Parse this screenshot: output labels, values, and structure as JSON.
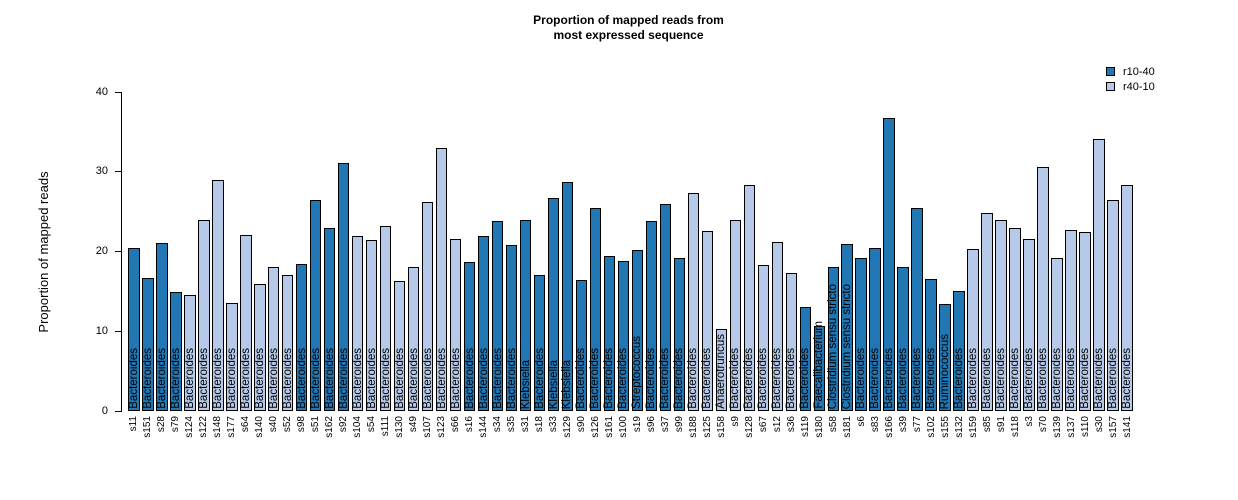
{
  "header": {
    "title_line1": "Proportion of mapped reads from",
    "title_line2": "most expressed sequence"
  },
  "y_axis": {
    "label": "Proportion of mapped reads",
    "ticks": [
      0,
      10,
      20,
      30,
      40
    ]
  },
  "legend": {
    "items": [
      {
        "label": "r10-40",
        "color": "#2176B4"
      },
      {
        "label": "r40-10",
        "color": "#B6C9E8"
      }
    ]
  },
  "chart_data": {
    "type": "bar",
    "title": "Proportion of mapped reads from most expressed sequence",
    "xlabel": "",
    "ylabel": "Proportion of mapped reads",
    "ylim": [
      0,
      40
    ],
    "yticks": [
      0,
      10,
      20,
      30,
      40
    ],
    "grid": false,
    "legend_position": "top-right",
    "series_colors": {
      "r10-40": "#2176B4",
      "r40-10": "#B6C9E8"
    },
    "bars": [
      {
        "sample": "s11",
        "value": 20.5,
        "series": "r10-40",
        "taxon": "Bacteroides"
      },
      {
        "sample": "s151",
        "value": 16.7,
        "series": "r10-40",
        "taxon": "Bacteroides"
      },
      {
        "sample": "s28",
        "value": 21.1,
        "series": "r10-40",
        "taxon": "Bacteroides"
      },
      {
        "sample": "s79",
        "value": 14.9,
        "series": "r10-40",
        "taxon": "Bacteroides"
      },
      {
        "sample": "s124",
        "value": 14.6,
        "series": "r40-10",
        "taxon": "Bacteroides"
      },
      {
        "sample": "s122",
        "value": 24.0,
        "series": "r40-10",
        "taxon": "Bacteroides"
      },
      {
        "sample": "s148",
        "value": 29.0,
        "series": "r40-10",
        "taxon": "Bacteroides"
      },
      {
        "sample": "s177",
        "value": 13.5,
        "series": "r40-10",
        "taxon": "Bacteroides"
      },
      {
        "sample": "s64",
        "value": 22.1,
        "series": "r40-10",
        "taxon": "Bacteroides"
      },
      {
        "sample": "s140",
        "value": 15.9,
        "series": "r40-10",
        "taxon": "Bacteroides"
      },
      {
        "sample": "s40",
        "value": 18.1,
        "series": "r40-10",
        "taxon": "Bacteroides"
      },
      {
        "sample": "s52",
        "value": 17.0,
        "series": "r40-10",
        "taxon": "Bacteroides"
      },
      {
        "sample": "s98",
        "value": 18.4,
        "series": "r10-40",
        "taxon": "Bacteroides"
      },
      {
        "sample": "s51",
        "value": 26.5,
        "series": "r10-40",
        "taxon": "Bacteroides"
      },
      {
        "sample": "s162",
        "value": 22.9,
        "series": "r10-40",
        "taxon": "Bacteroides"
      },
      {
        "sample": "s92",
        "value": 31.1,
        "series": "r10-40",
        "taxon": "Bacteroides"
      },
      {
        "sample": "s104",
        "value": 21.9,
        "series": "r40-10",
        "taxon": "Bacteroides"
      },
      {
        "sample": "s54",
        "value": 21.4,
        "series": "r40-10",
        "taxon": "Bacteroides"
      },
      {
        "sample": "s111",
        "value": 23.2,
        "series": "r40-10",
        "taxon": "Bacteroides"
      },
      {
        "sample": "s130",
        "value": 16.3,
        "series": "r40-10",
        "taxon": "Bacteroides"
      },
      {
        "sample": "s49",
        "value": 18.1,
        "series": "r40-10",
        "taxon": "Bacteroides"
      },
      {
        "sample": "s107",
        "value": 26.2,
        "series": "r40-10",
        "taxon": "Bacteroides"
      },
      {
        "sample": "s123",
        "value": 33.0,
        "series": "r40-10",
        "taxon": "Bacteroides"
      },
      {
        "sample": "s66",
        "value": 21.6,
        "series": "r40-10",
        "taxon": "Bacteroides"
      },
      {
        "sample": "s16",
        "value": 18.7,
        "series": "r10-40",
        "taxon": "Bacteroides"
      },
      {
        "sample": "s144",
        "value": 21.9,
        "series": "r10-40",
        "taxon": "Bacteroides"
      },
      {
        "sample": "s34",
        "value": 23.8,
        "series": "r10-40",
        "taxon": "Bacteroides"
      },
      {
        "sample": "s35",
        "value": 20.8,
        "series": "r10-40",
        "taxon": "Bacteroides"
      },
      {
        "sample": "s31",
        "value": 23.9,
        "series": "r10-40",
        "taxon": "Klebsiella"
      },
      {
        "sample": "s18",
        "value": 17.1,
        "series": "r10-40",
        "taxon": "Bacteroides"
      },
      {
        "sample": "s33",
        "value": 26.7,
        "series": "r10-40",
        "taxon": "Klebsiella"
      },
      {
        "sample": "s129",
        "value": 28.7,
        "series": "r10-40",
        "taxon": "Klebsiella"
      },
      {
        "sample": "s90",
        "value": 16.4,
        "series": "r10-40",
        "taxon": "Bacteroides"
      },
      {
        "sample": "s126",
        "value": 25.4,
        "series": "r10-40",
        "taxon": "Bacteroides"
      },
      {
        "sample": "s161",
        "value": 19.4,
        "series": "r10-40",
        "taxon": "Bacteroides"
      },
      {
        "sample": "s100",
        "value": 18.8,
        "series": "r10-40",
        "taxon": "Bacteroides"
      },
      {
        "sample": "s19",
        "value": 20.2,
        "series": "r10-40",
        "taxon": "Streptococcus"
      },
      {
        "sample": "s96",
        "value": 23.8,
        "series": "r10-40",
        "taxon": "Bacteroides"
      },
      {
        "sample": "s37",
        "value": 25.9,
        "series": "r10-40",
        "taxon": "Bacteroides"
      },
      {
        "sample": "s99",
        "value": 19.2,
        "series": "r10-40",
        "taxon": "Bacteroides"
      },
      {
        "sample": "s188",
        "value": 27.4,
        "series": "r40-10",
        "taxon": "Bacteroides"
      },
      {
        "sample": "s125",
        "value": 22.6,
        "series": "r40-10",
        "taxon": "Bacteroides"
      },
      {
        "sample": "s158",
        "value": 10.3,
        "series": "r40-10",
        "taxon": "Anaerotruncus"
      },
      {
        "sample": "s9",
        "value": 23.9,
        "series": "r40-10",
        "taxon": "Bacteroides"
      },
      {
        "sample": "s128",
        "value": 28.4,
        "series": "r40-10",
        "taxon": "Bacteroides"
      },
      {
        "sample": "s67",
        "value": 18.3,
        "series": "r40-10",
        "taxon": "Bacteroides"
      },
      {
        "sample": "s12",
        "value": 21.2,
        "series": "r40-10",
        "taxon": "Bacteroides"
      },
      {
        "sample": "s36",
        "value": 17.3,
        "series": "r40-10",
        "taxon": "Bacteroides"
      },
      {
        "sample": "s119",
        "value": 13.0,
        "series": "r10-40",
        "taxon": "Bacteroides"
      },
      {
        "sample": "s180",
        "value": 10.7,
        "series": "r10-40",
        "taxon": "Faecalibacterium"
      },
      {
        "sample": "s58",
        "value": 18.1,
        "series": "r10-40",
        "taxon": "Clostridium sensu stricto"
      },
      {
        "sample": "s181",
        "value": 20.9,
        "series": "r10-40",
        "taxon": "Clostridium sensu stricto"
      },
      {
        "sample": "s6",
        "value": 19.2,
        "series": "r10-40",
        "taxon": "Bacteroides"
      },
      {
        "sample": "s83",
        "value": 20.5,
        "series": "r10-40",
        "taxon": "Bacteroides"
      },
      {
        "sample": "s166",
        "value": 36.8,
        "series": "r10-40",
        "taxon": "Bacteroides"
      },
      {
        "sample": "s39",
        "value": 18.1,
        "series": "r10-40",
        "taxon": "Bacteroides"
      },
      {
        "sample": "s77",
        "value": 25.4,
        "series": "r10-40",
        "taxon": "Bacteroides"
      },
      {
        "sample": "s102",
        "value": 16.5,
        "series": "r10-40",
        "taxon": "Bacteroides"
      },
      {
        "sample": "s155",
        "value": 13.4,
        "series": "r10-40",
        "taxon": "Ruminococcus"
      },
      {
        "sample": "s132",
        "value": 15.0,
        "series": "r10-40",
        "taxon": "Bacteroides"
      },
      {
        "sample": "s159",
        "value": 20.3,
        "series": "r40-10",
        "taxon": "Bacteroides"
      },
      {
        "sample": "s85",
        "value": 24.8,
        "series": "r40-10",
        "taxon": "Bacteroides"
      },
      {
        "sample": "s91",
        "value": 23.9,
        "series": "r40-10",
        "taxon": "Bacteroides"
      },
      {
        "sample": "s118",
        "value": 22.9,
        "series": "r40-10",
        "taxon": "Bacteroides"
      },
      {
        "sample": "s3",
        "value": 21.6,
        "series": "r40-10",
        "taxon": "Bacteroides"
      },
      {
        "sample": "s70",
        "value": 30.6,
        "series": "r40-10",
        "taxon": "Bacteroides"
      },
      {
        "sample": "s139",
        "value": 19.2,
        "series": "r40-10",
        "taxon": "Bacteroides"
      },
      {
        "sample": "s137",
        "value": 22.7,
        "series": "r40-10",
        "taxon": "Bacteroides"
      },
      {
        "sample": "s110",
        "value": 22.4,
        "series": "r40-10",
        "taxon": "Bacteroides"
      },
      {
        "sample": "s30",
        "value": 34.1,
        "series": "r40-10",
        "taxon": "Bacteroides"
      },
      {
        "sample": "s157",
        "value": 26.4,
        "series": "r40-10",
        "taxon": "Bacteroides"
      },
      {
        "sample": "s141",
        "value": 28.4,
        "series": "r40-10",
        "taxon": "Bacteroides"
      }
    ]
  }
}
